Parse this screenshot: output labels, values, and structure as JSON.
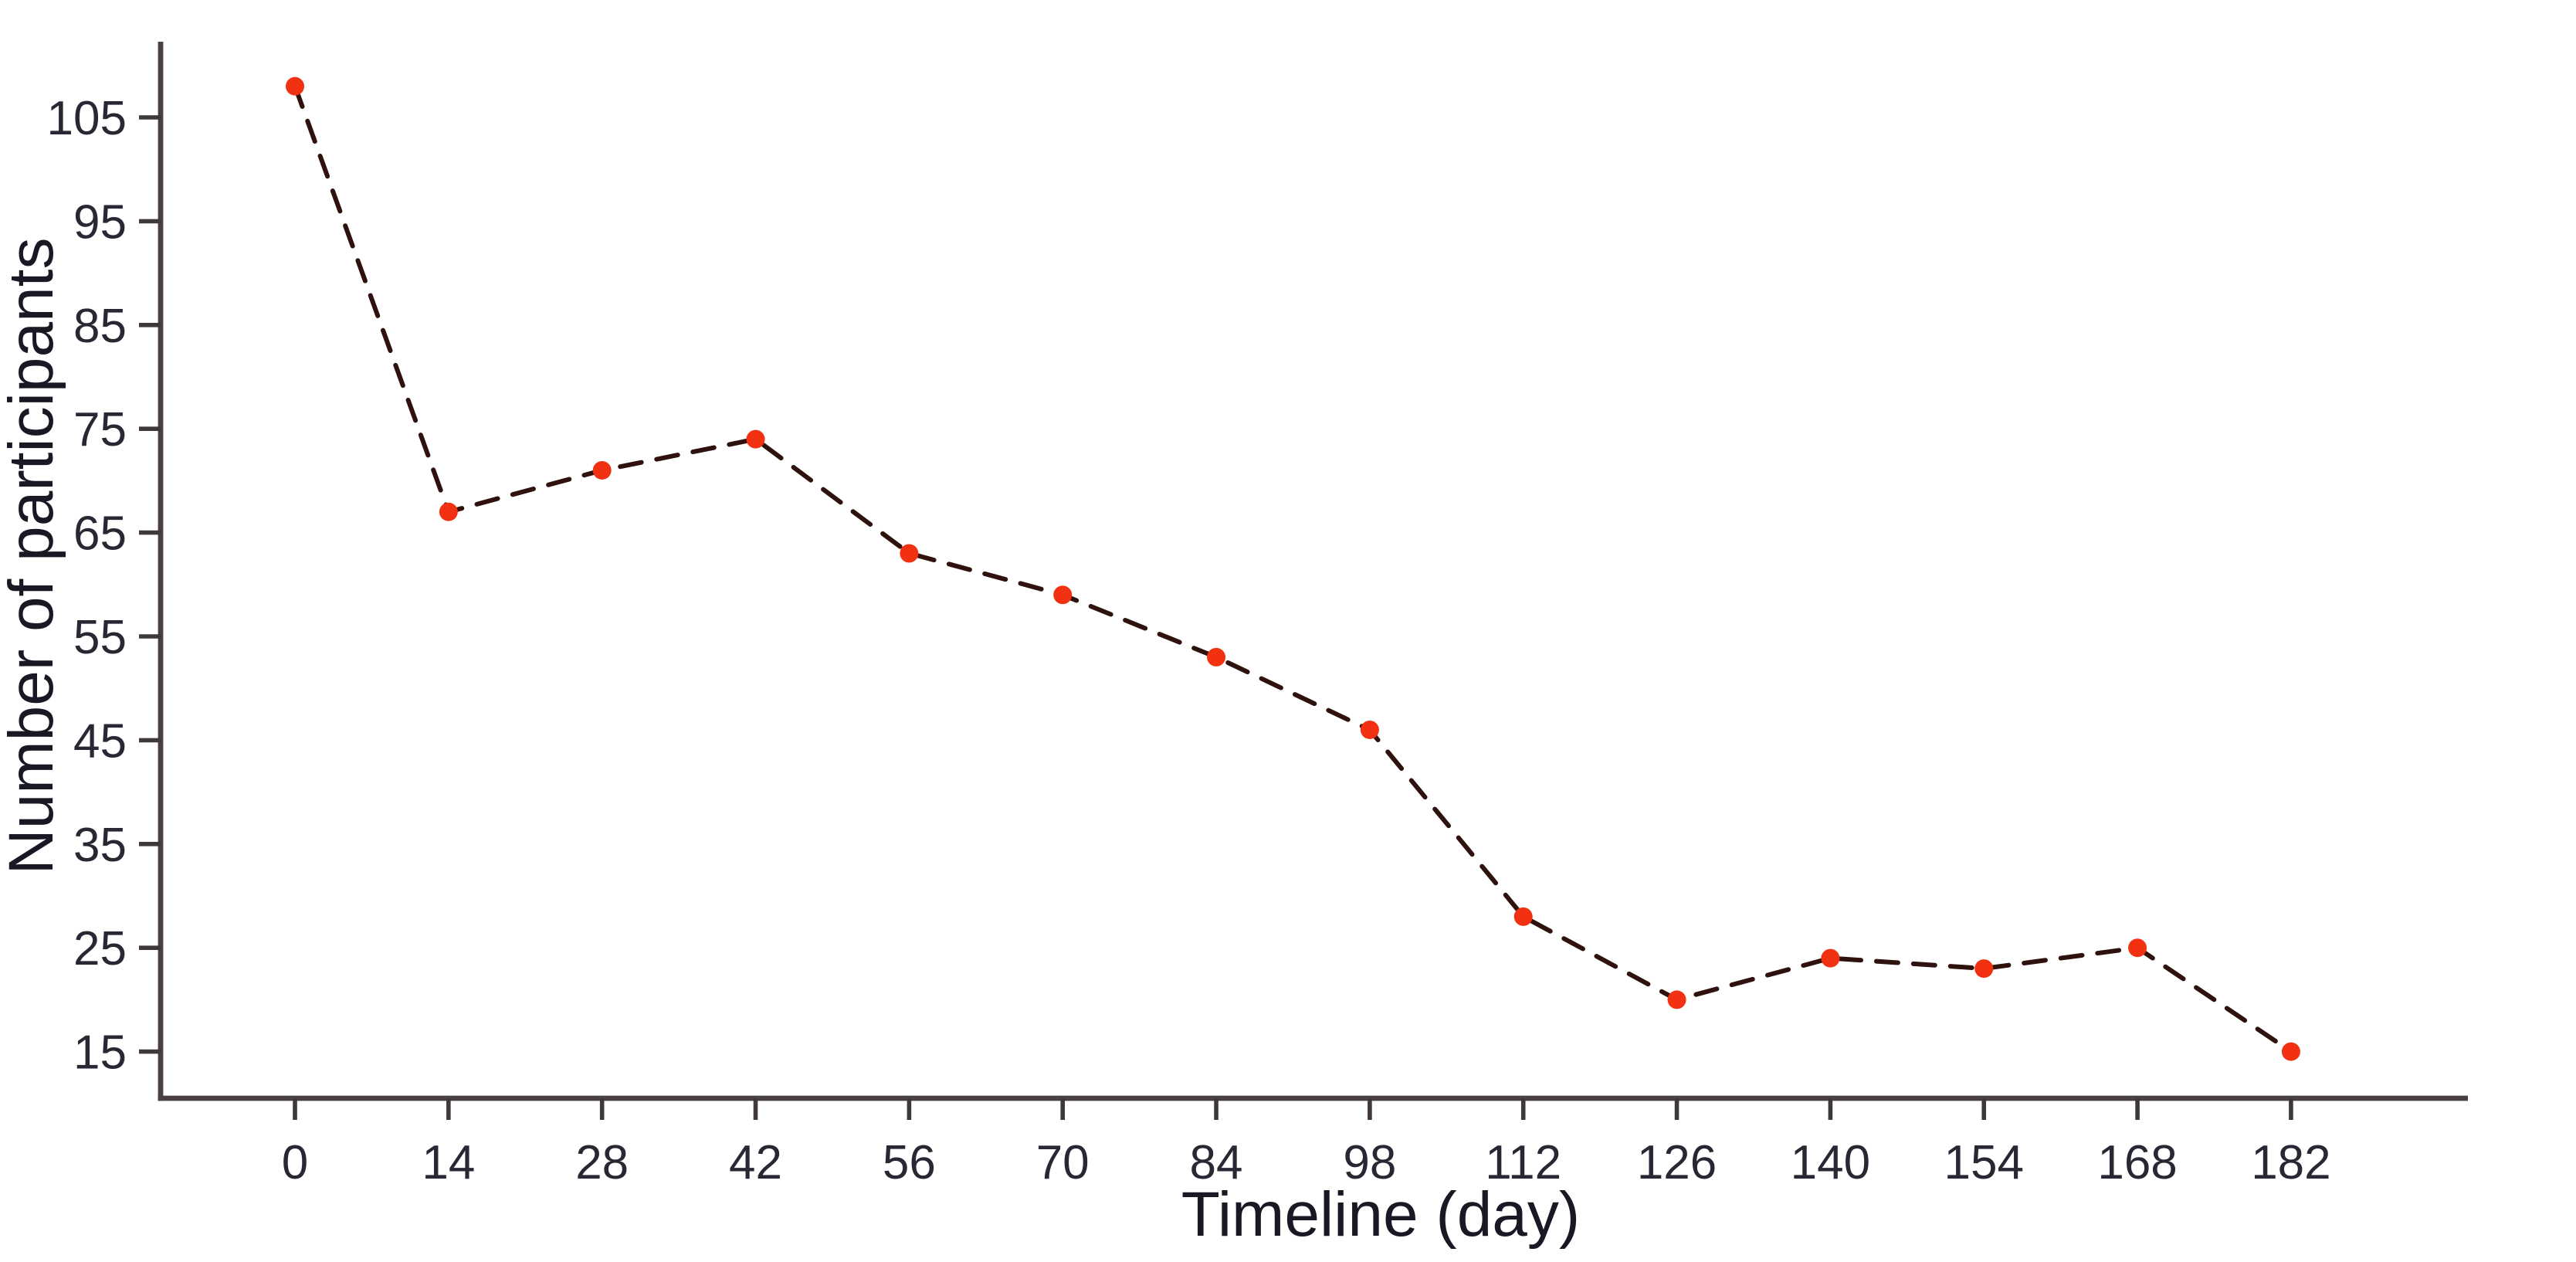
{
  "chart_data": {
    "type": "line",
    "title": "",
    "xlabel": "Timeline (day)",
    "ylabel": "Number of participants",
    "series": [
      {
        "name": "Number of participants",
        "x": [
          0,
          14,
          28,
          42,
          56,
          70,
          84,
          98,
          112,
          126,
          140,
          154,
          168,
          182
        ],
        "values": [
          108,
          67,
          71,
          74,
          63,
          59,
          53,
          46,
          28,
          20,
          24,
          23,
          25,
          15
        ]
      }
    ],
    "x_tick_labels": [
      "0",
      "14",
      "28",
      "42",
      "56",
      "70",
      "84",
      "98",
      "112",
      "126",
      "140",
      "154",
      "168",
      "182"
    ],
    "y_tick_labels": [
      "15",
      "25",
      "35",
      "45",
      "55",
      "65",
      "75",
      "85",
      "95",
      "105"
    ],
    "y_ticks": [
      15,
      25,
      35,
      45,
      55,
      65,
      75,
      85,
      95,
      105
    ],
    "xlim": [
      0,
      182
    ],
    "ylim": [
      10.5,
      115
    ],
    "grid": false,
    "legend_position": "none",
    "line_style": "dashed",
    "marker": "circle",
    "colors": {
      "marker": "#f23112",
      "line": "#2f120d",
      "axis": "#4a4044",
      "tick": "#3e383c",
      "tick_label": "#2b2633",
      "axis_title": "#1c1724",
      "background": "#ffffff"
    }
  }
}
